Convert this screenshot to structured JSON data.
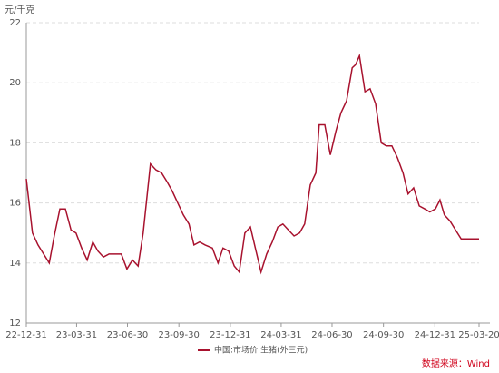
{
  "chart_data": {
    "type": "line",
    "y_unit": "元/千克",
    "source": "数据来源：Wind",
    "x": [
      "22-12-31",
      "23-01-11",
      "23-01-21",
      "23-01-31",
      "23-02-10",
      "23-02-19",
      "23-03-01",
      "23-03-11",
      "23-03-21",
      "23-03-30",
      "23-04-09",
      "23-04-19",
      "23-04-29",
      "23-05-08",
      "23-05-18",
      "23-05-28",
      "23-06-06",
      "23-06-19",
      "23-06-29",
      "23-07-09",
      "23-07-19",
      "23-07-28",
      "23-08-10",
      "23-08-20",
      "23-08-30",
      "23-09-09",
      "23-09-18",
      "23-09-28",
      "23-10-08",
      "23-10-18",
      "23-10-27",
      "23-11-06",
      "23-11-16",
      "23-11-29",
      "23-12-09",
      "23-12-18",
      "23-12-28",
      "24-01-07",
      "24-01-16",
      "24-01-26",
      "24-02-05",
      "24-02-15",
      "24-02-24",
      "24-03-05",
      "24-03-15",
      "24-03-25",
      "24-04-03",
      "24-04-13",
      "24-04-23",
      "24-05-03",
      "24-05-12",
      "24-05-22",
      "24-06-01",
      "24-06-07",
      "24-06-17",
      "24-06-27",
      "24-07-07",
      "24-07-16",
      "24-07-26",
      "24-08-05",
      "24-08-11",
      "24-08-18",
      "24-08-28",
      "24-09-06",
      "24-09-16",
      "24-09-26",
      "24-10-05",
      "24-10-15",
      "24-10-25",
      "24-11-04",
      "24-11-13",
      "24-11-23",
      "24-12-03",
      "24-12-13",
      "24-12-22",
      "25-01-01",
      "25-01-09",
      "25-01-17",
      "25-01-27",
      "25-02-06",
      "25-02-16",
      "25-02-25",
      "25-03-07",
      "25-03-20"
    ],
    "series": [
      {
        "name": "中国:市场价:生猪(外三元)",
        "color": "#a8122e",
        "values": [
          16.8,
          15.0,
          14.6,
          14.3,
          14.0,
          14.9,
          15.8,
          15.8,
          15.1,
          15.0,
          14.5,
          14.1,
          14.7,
          14.4,
          14.2,
          14.3,
          14.3,
          14.3,
          13.8,
          14.1,
          13.9,
          15.0,
          17.3,
          17.1,
          17.0,
          16.7,
          16.4,
          16.0,
          15.6,
          15.3,
          14.6,
          14.7,
          14.6,
          14.5,
          14.0,
          14.5,
          14.4,
          13.9,
          13.7,
          15.0,
          15.2,
          14.4,
          13.7,
          14.3,
          14.7,
          15.2,
          15.3,
          15.1,
          14.9,
          15.0,
          15.3,
          16.6,
          17.0,
          18.6,
          18.6,
          17.6,
          18.4,
          19.0,
          19.4,
          20.5,
          20.6,
          20.9,
          19.7,
          19.8,
          19.3,
          18.0,
          17.9,
          17.9,
          17.5,
          17.0,
          16.3,
          16.5,
          15.9,
          15.8,
          15.7,
          15.8,
          16.1,
          15.6,
          15.4,
          15.1,
          14.8,
          14.8,
          14.8,
          14.8
        ]
      }
    ],
    "xlim": [
      "22-12-31",
      "25-03-20"
    ],
    "xticks": [
      "22-12-31",
      "23-03-31",
      "23-06-30",
      "23-09-30",
      "23-12-31",
      "24-03-31",
      "24-06-30",
      "24-09-30",
      "24-12-31",
      "25-03-20"
    ],
    "ylim": [
      12,
      22
    ],
    "yticks": [
      12,
      14,
      16,
      18,
      20,
      22
    ],
    "grid": true,
    "legend": "bottom"
  }
}
